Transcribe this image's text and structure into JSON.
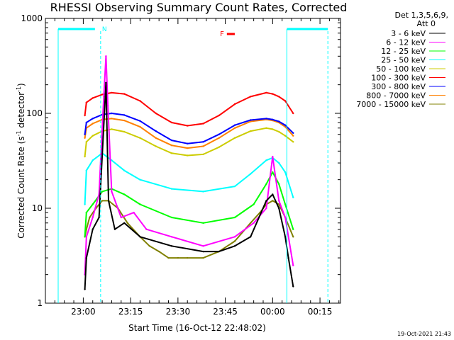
{
  "chart_data": {
    "type": "line",
    "title": "RHESSI Observing Summary Count Rates, Corrected",
    "xlabel": "Start Time (16-Oct-12 22:48:02)",
    "ylabel": "Corrected Count Rate (s",
    "ylabel_sup": "-1",
    "ylabel_mid": " detector",
    "ylabel_sup2": "-1",
    "ylabel_end": ")",
    "yscale": "log",
    "ylim": [
      1,
      1000
    ],
    "xlim_minutes": [
      0,
      93.5
    ],
    "x_tick_labels": [
      "23:00",
      "23:15",
      "23:30",
      "23:45",
      "00:00",
      "00:15"
    ],
    "x_tick_minutes": [
      12,
      27,
      42,
      57,
      72,
      87
    ],
    "y_tick_labels": [
      "1",
      "10",
      "100",
      "1000"
    ],
    "y_tick_values": [
      1,
      10,
      100,
      1000
    ],
    "legend_header": "Det 1,3,5,6,9,",
    "legend_header2": "Att 0",
    "legend_position": "top-right",
    "series": [
      {
        "name": "3 - 6 keV",
        "color": "#000000",
        "x": [
          12.5,
          13,
          15,
          17,
          19.2,
          20,
          22,
          25,
          30,
          40,
          50,
          55,
          60,
          65,
          70,
          72,
          74,
          76,
          77,
          78.5
        ],
        "y": [
          1.4,
          3,
          6,
          8,
          210,
          12,
          6,
          7,
          5,
          4,
          3.5,
          3.5,
          4,
          5,
          12,
          14,
          10,
          5,
          3,
          1.5
        ]
      },
      {
        "name": "6 - 12 keV",
        "color": "#ff00ff",
        "x": [
          12.5,
          13,
          15,
          17,
          18.5,
          19.2,
          19.8,
          21,
          24,
          28,
          32,
          40,
          50,
          60,
          66,
          70,
          72,
          74,
          76,
          78.5
        ],
        "y": [
          2,
          5,
          8,
          14,
          150,
          400,
          120,
          15,
          8,
          9,
          6,
          5,
          4,
          5,
          7,
          10,
          35,
          12,
          8,
          2.5
        ]
      },
      {
        "name": "12 - 25 keV",
        "color": "#00ff00",
        "x": [
          12.5,
          13,
          15,
          18,
          21,
          25,
          30,
          40,
          50,
          60,
          66,
          70,
          72,
          74,
          76,
          78.5
        ],
        "y": [
          5,
          9,
          11,
          15,
          16,
          14,
          11,
          8,
          7,
          8,
          11,
          18,
          24,
          18,
          11,
          6
        ]
      },
      {
        "name": "25 - 50 keV",
        "color": "#00ffff",
        "x": [
          12.5,
          13,
          15,
          18,
          21,
          25,
          30,
          40,
          50,
          60,
          65,
          70,
          72,
          74,
          76,
          78.5
        ],
        "y": [
          11,
          25,
          32,
          38,
          32,
          25,
          20,
          16,
          15,
          17,
          23,
          32,
          34,
          30,
          24,
          13
        ]
      },
      {
        "name": "50 - 100 keV",
        "color": "#cccc00",
        "x": [
          12.5,
          13,
          15,
          18,
          21,
          25,
          30,
          35,
          40,
          45,
          50,
          55,
          60,
          65,
          70,
          72,
          74,
          76,
          78.5
        ],
        "y": [
          35,
          50,
          58,
          65,
          68,
          64,
          55,
          45,
          38,
          36,
          37,
          44,
          55,
          65,
          70,
          68,
          64,
          58,
          50
        ]
      },
      {
        "name": "100 - 300 keV",
        "color": "#ff0000",
        "x": [
          12.5,
          13,
          15,
          18,
          21,
          25,
          30,
          35,
          40,
          45,
          50,
          55,
          60,
          65,
          70,
          72,
          74,
          76,
          78.5
        ],
        "y": [
          95,
          130,
          145,
          158,
          165,
          160,
          135,
          100,
          80,
          74,
          78,
          95,
          125,
          150,
          165,
          160,
          150,
          135,
          100
        ]
      },
      {
        "name": "300 - 800 keV",
        "color": "#0000ff",
        "x": [
          12.5,
          13,
          15,
          18,
          21,
          25,
          30,
          35,
          40,
          45,
          50,
          55,
          60,
          65,
          70,
          72,
          74,
          76,
          78.5
        ],
        "y": [
          60,
          80,
          88,
          97,
          100,
          96,
          83,
          65,
          52,
          48,
          50,
          60,
          75,
          85,
          88,
          86,
          82,
          75,
          62
        ]
      },
      {
        "name": "800 - 7000 keV",
        "color": "#ff8000",
        "x": [
          12.5,
          13,
          15,
          18,
          21,
          25,
          30,
          35,
          40,
          45,
          50,
          55,
          60,
          65,
          70,
          72,
          74,
          76,
          78.5
        ],
        "y": [
          55,
          70,
          78,
          86,
          88,
          84,
          72,
          55,
          46,
          43,
          45,
          55,
          70,
          82,
          86,
          84,
          80,
          72,
          58
        ]
      },
      {
        "name": "7000 - 15000 keV",
        "color": "#808000",
        "x": [
          12.5,
          13,
          14,
          16,
          18,
          20,
          23,
          26,
          30,
          33,
          36,
          39,
          42,
          45,
          50,
          55,
          60,
          65,
          68,
          70,
          72,
          74,
          76,
          78.5
        ],
        "y": [
          5,
          6,
          8,
          10,
          12,
          12,
          10,
          7,
          5,
          4,
          3.5,
          3,
          3,
          3,
          3,
          3.5,
          4.5,
          7,
          9,
          11,
          12,
          11,
          8,
          5
        ]
      }
    ],
    "markers": {
      "N": {
        "label": "N",
        "color": "#00ffff",
        "x_minutes": [
          0,
          17.5
        ]
      },
      "F": {
        "label": "F",
        "color": "#ff0000",
        "x_minutes": [
          57.5,
          60
        ]
      },
      "right_bar_color": "#00ffff",
      "right_bar_x_minutes": [
        76.5,
        89.5
      ]
    }
  },
  "footer": {
    "timestamp": "19-Oct-2021 21:43"
  }
}
